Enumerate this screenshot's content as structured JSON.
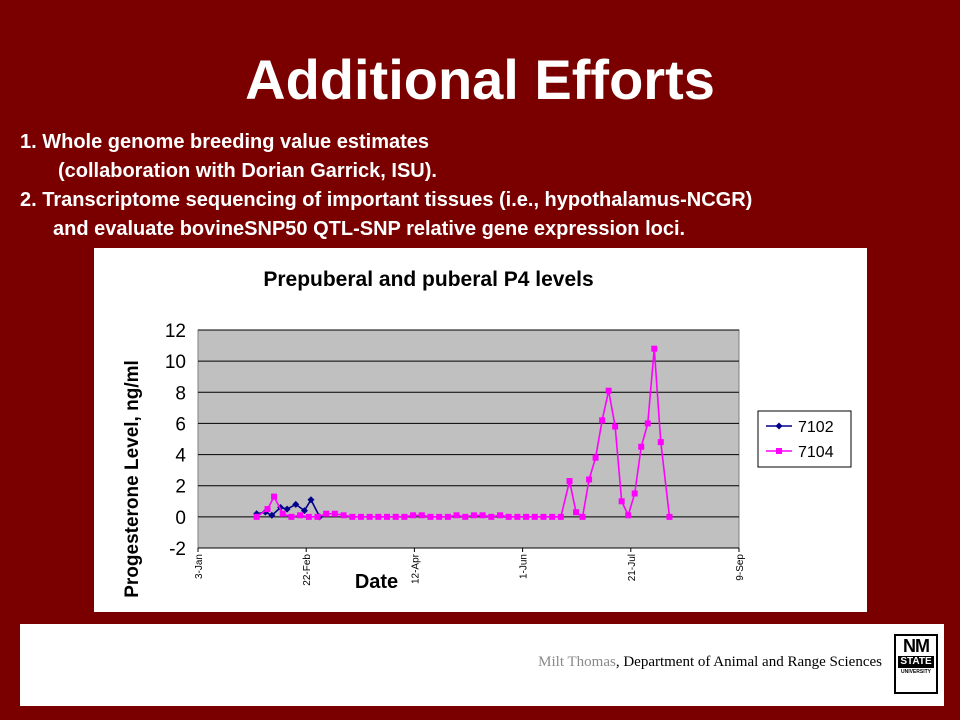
{
  "slide": {
    "title": "Additional Efforts",
    "bullets": [
      "1.   Whole genome breeding value estimates",
      "(collaboration with Dorian Garrick, ISU).",
      "2.   Transcriptome sequencing of important tissues (i.e., hypothalamus-NCGR)",
      "and evaluate bovineSNP50 QTL-SNP relative gene expression loci."
    ]
  },
  "footer": {
    "name": "Milt Thomas",
    "dept": ", Department of Animal and Range Sciences",
    "logo": {
      "top": "NM",
      "middle": "STATE",
      "bottom": "UNIVERSITY"
    }
  },
  "chart_data": {
    "type": "line",
    "title": "Prepuberal and puberal P4 levels",
    "xlabel": "Date",
    "ylabel": "Progesterone Level, ng/ml",
    "x_ticks": [
      "3-Jan",
      "22-Feb",
      "12-Apr",
      "1-Jun",
      "21-Jul",
      "9-Sep"
    ],
    "y_ticks": [
      "-2",
      "0",
      "2",
      "4",
      "6",
      "8",
      "10",
      "12"
    ],
    "ylim": [
      -2,
      12
    ],
    "xlim_days": [
      0,
      249
    ],
    "grid": "horizontal",
    "legend_position": "right",
    "plot_background": "#c0c0c0",
    "series": [
      {
        "name": "7102",
        "color": "#00008b",
        "marker": "diamond",
        "x": [
          "2013-01-30",
          "2013-02-03",
          "2013-02-06",
          "2013-02-10",
          "2013-02-13",
          "2013-02-17",
          "2013-02-21",
          "2013-02-24",
          "2013-02-28"
        ],
        "y": [
          0.2,
          0.3,
          0.1,
          0.6,
          0.5,
          0.8,
          0.4,
          1.1,
          0.0
        ]
      },
      {
        "name": "7104",
        "color": "#ff00ff",
        "marker": "square",
        "x": [
          "2013-01-30",
          "2013-02-04",
          "2013-02-07",
          "2013-02-11",
          "2013-02-15",
          "2013-02-19",
          "2013-02-23",
          "2013-02-27",
          "2013-03-03",
          "2013-03-07",
          "2013-03-11",
          "2013-03-15",
          "2013-03-19",
          "2013-03-23",
          "2013-03-27",
          "2013-03-31",
          "2013-04-04",
          "2013-04-08",
          "2013-04-12",
          "2013-04-16",
          "2013-04-20",
          "2013-04-24",
          "2013-04-28",
          "2013-05-02",
          "2013-05-06",
          "2013-05-10",
          "2013-05-14",
          "2013-05-18",
          "2013-05-22",
          "2013-05-26",
          "2013-05-30",
          "2013-06-03",
          "2013-06-07",
          "2013-06-11",
          "2013-06-15",
          "2013-06-19",
          "2013-06-23",
          "2013-06-26",
          "2013-06-29",
          "2013-07-02",
          "2013-07-05",
          "2013-07-08",
          "2013-07-11",
          "2013-07-14",
          "2013-07-17",
          "2013-07-20",
          "2013-07-23",
          "2013-07-26",
          "2013-07-29",
          "2013-08-01",
          "2013-08-04",
          "2013-08-08"
        ],
        "y": [
          0.0,
          0.5,
          1.3,
          0.2,
          0.0,
          0.1,
          0.0,
          0.0,
          0.2,
          0.2,
          0.1,
          0.0,
          0.0,
          0.0,
          0.0,
          0.0,
          0.0,
          0.0,
          0.1,
          0.1,
          0.0,
          0.0,
          0.0,
          0.1,
          0.0,
          0.1,
          0.1,
          0.0,
          0.1,
          0.0,
          0.0,
          0.0,
          0.0,
          0.0,
          0.0,
          0.0,
          2.3,
          0.3,
          0.0,
          2.4,
          3.8,
          6.2,
          8.1,
          5.8,
          1.0,
          0.1,
          1.5,
          4.5,
          6.0,
          10.8,
          4.8,
          0.0
        ]
      }
    ]
  }
}
